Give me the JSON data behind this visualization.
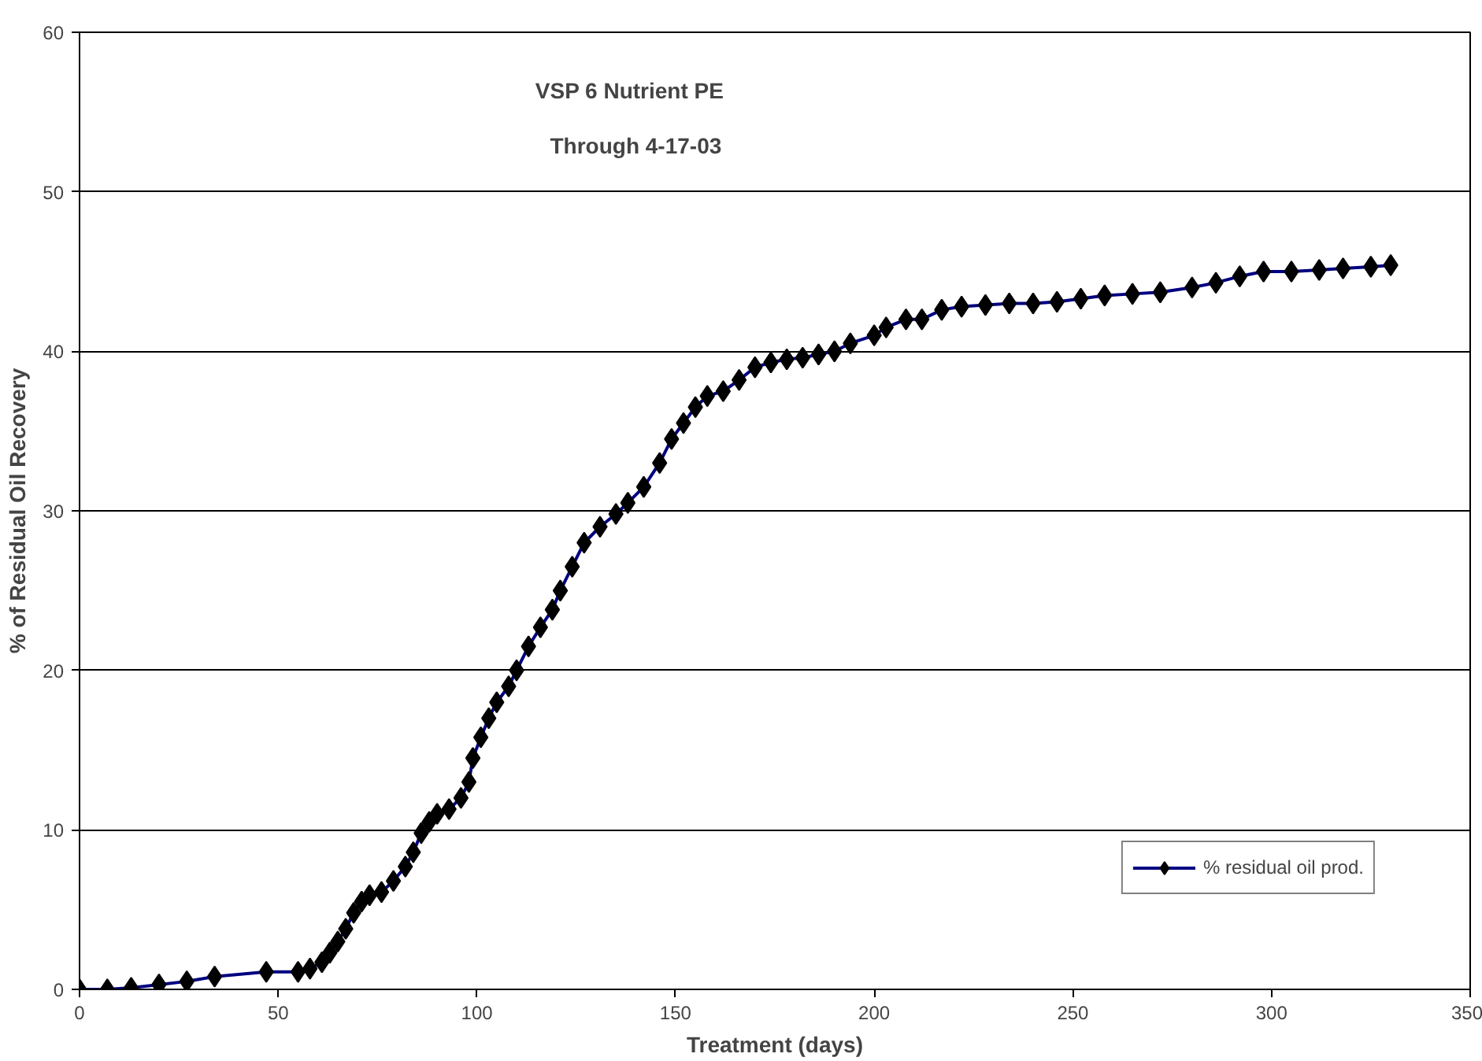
{
  "chart_data": {
    "type": "line",
    "title": "VSP 6   Nutrient PE",
    "subtitle": "Through 4-17-03",
    "xlabel": "Treatment (days)",
    "ylabel": "% of Residual Oil Recovery",
    "x": [
      0,
      7,
      13,
      20,
      27,
      34,
      47,
      55,
      58,
      61,
      63,
      65,
      67,
      69,
      71,
      73,
      76,
      79,
      82,
      84,
      86,
      88,
      90,
      93,
      96,
      98,
      99,
      101,
      103,
      105,
      108,
      110,
      113,
      116,
      119,
      121,
      124,
      127,
      131,
      135,
      138,
      142,
      146,
      149,
      152,
      155,
      158,
      162,
      166,
      170,
      174,
      178,
      182,
      186,
      190,
      194,
      200,
      203,
      208,
      212,
      217,
      222,
      228,
      234,
      240,
      246,
      252,
      258,
      265,
      272,
      280,
      286,
      292,
      298,
      305,
      312,
      318,
      325,
      330
    ],
    "series": [
      {
        "name": "% residual oil prod.",
        "color": "#000080",
        "values": [
          0,
          0,
          0.1,
          0.3,
          0.5,
          0.8,
          1.1,
          1.1,
          1.3,
          1.7,
          2.3,
          3,
          3.8,
          4.8,
          5.5,
          5.9,
          6.1,
          6.8,
          7.7,
          8.6,
          9.8,
          10.5,
          11,
          11.3,
          12,
          13,
          14.5,
          15.8,
          17,
          18,
          19,
          20,
          21.5,
          22.7,
          23.8,
          25,
          26.5,
          28,
          29,
          29.8,
          30.5,
          31.5,
          33,
          34.5,
          35.5,
          36.5,
          37.2,
          37.5,
          38.2,
          39,
          39.3,
          39.5,
          39.6,
          39.8,
          40,
          40.5,
          41,
          41.5,
          42,
          42,
          42.6,
          42.8,
          42.9,
          43,
          43,
          43.1,
          43.3,
          43.5,
          43.6,
          43.7,
          44,
          44.3,
          44.7,
          45,
          45,
          45.1,
          45.2,
          45.3,
          45.4
        ]
      }
    ],
    "xlim": [
      0,
      350
    ],
    "xticks": [
      0,
      50,
      100,
      150,
      200,
      250,
      300,
      350
    ],
    "ylim": [
      0,
      60
    ],
    "yticks": [
      0,
      10,
      20,
      30,
      40,
      50,
      60
    ],
    "grid": "y",
    "legend": "bottom right",
    "marker": "diamond",
    "line_style": "solid"
  }
}
